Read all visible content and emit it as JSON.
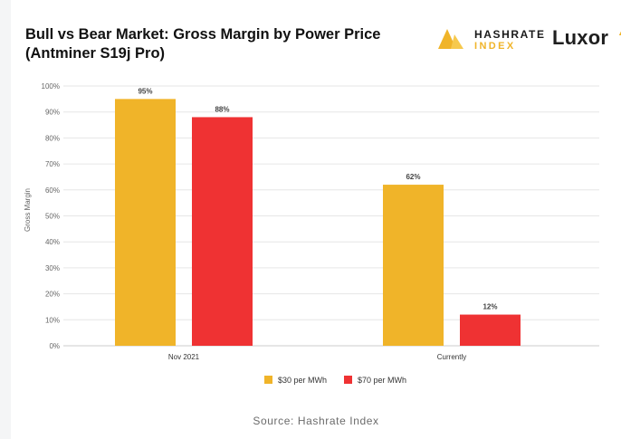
{
  "header": {
    "title_line1": "Bull vs Bear Market: Gross Margin by Power Price",
    "title_line2": "(Antminer S19j Pro)",
    "brand_hashrate_line1": "HASHRATE",
    "brand_hashrate_line2": "INDEX",
    "brand_luxor": "Luxor"
  },
  "footer": {
    "source": "Source: Hashrate Index"
  },
  "colors": {
    "series1": "#f0b429",
    "series2": "#ef3233",
    "grid": "#e6e6e6",
    "axis_text": "#666666"
  },
  "chart_data": {
    "type": "bar",
    "title": "Bull vs Bear Market: Gross Margin by Power Price (Antminer S19j Pro)",
    "categories": [
      "Nov 2021",
      "Currently"
    ],
    "series": [
      {
        "name": "$30 per MWh",
        "values": [
          95,
          62
        ],
        "labels": [
          "95%",
          "62%"
        ]
      },
      {
        "name": "$70 per MWh",
        "values": [
          88,
          12
        ],
        "labels": [
          "88%",
          "12%"
        ]
      }
    ],
    "ylabel": "Gross Margin",
    "xlabel": "",
    "ylim": [
      0,
      100
    ],
    "yticks": [
      "0%",
      "10%",
      "20%",
      "30%",
      "40%",
      "50%",
      "60%",
      "70%",
      "80%",
      "90%",
      "100%"
    ],
    "grid": true,
    "legend": "bottom-center"
  }
}
